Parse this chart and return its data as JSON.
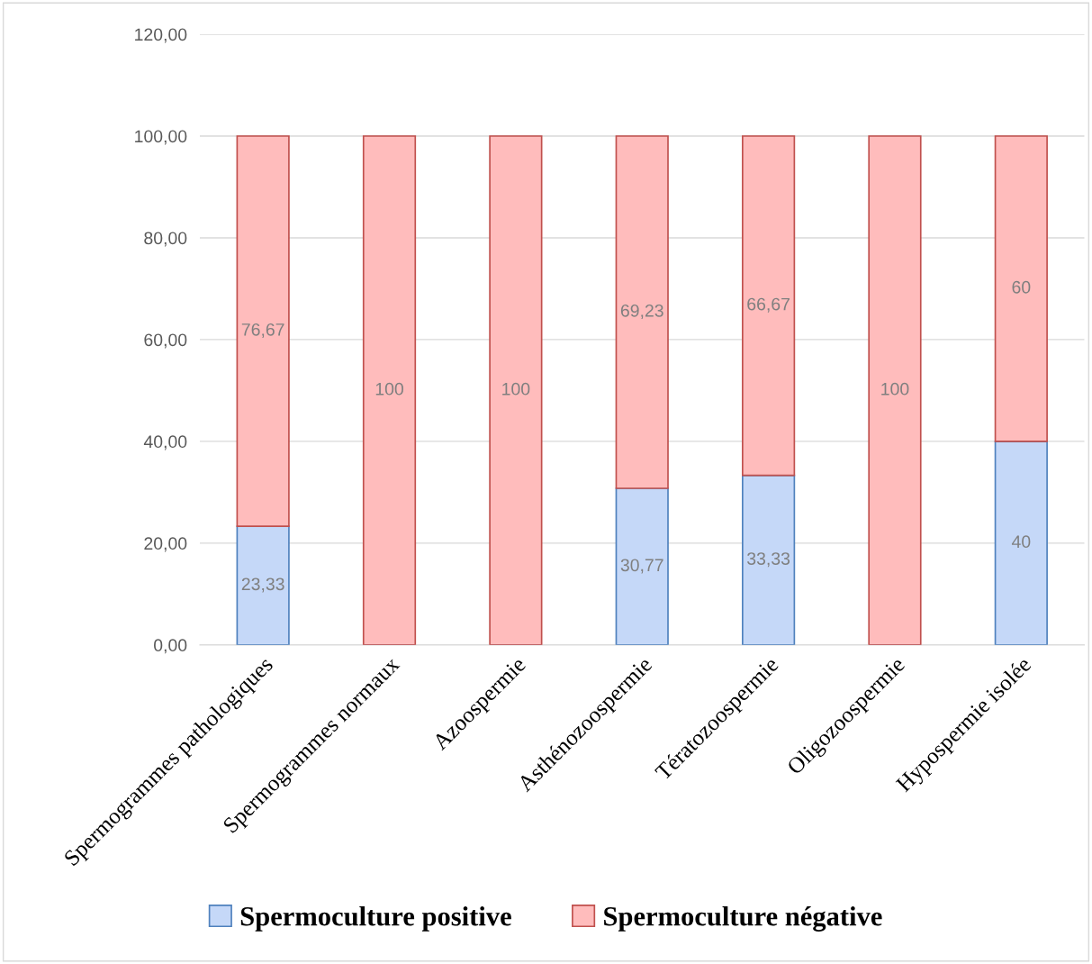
{
  "chart_data": {
    "type": "bar",
    "stacked": true,
    "categories": [
      "Spermogrammes pathologiques",
      "Spermogrammes normaux",
      "Azoospermie",
      "Asthénozoospermie",
      "Tératozoospermie",
      "Oligozoospermie",
      "Hypospermie isolée"
    ],
    "series": [
      {
        "name": "Spermoculture positive",
        "color": "#c5d8f8",
        "values": [
          23.33,
          0,
          0,
          30.77,
          33.33,
          0,
          40
        ],
        "value_labels": [
          "23,33",
          null,
          null,
          "30,77",
          "33,33",
          null,
          "40"
        ]
      },
      {
        "name": "Spermoculture négative",
        "color": "#ffbcbc",
        "values": [
          76.67,
          100,
          100,
          69.23,
          66.67,
          100,
          60
        ],
        "value_labels": [
          "76,67",
          "100",
          "100",
          "69,23",
          "66,67",
          "100",
          "60"
        ]
      }
    ],
    "ylim": [
      0,
      120
    ],
    "yticks": [
      {
        "value": 0,
        "label": "0,00"
      },
      {
        "value": 20,
        "label": "20,00"
      },
      {
        "value": 40,
        "label": "40,00"
      },
      {
        "value": 60,
        "label": "60,00"
      },
      {
        "value": 80,
        "label": "80,00"
      },
      {
        "value": 100,
        "label": "100,00"
      },
      {
        "value": 120,
        "label": "120,00"
      }
    ],
    "grid": "y",
    "legend": "bottom"
  }
}
